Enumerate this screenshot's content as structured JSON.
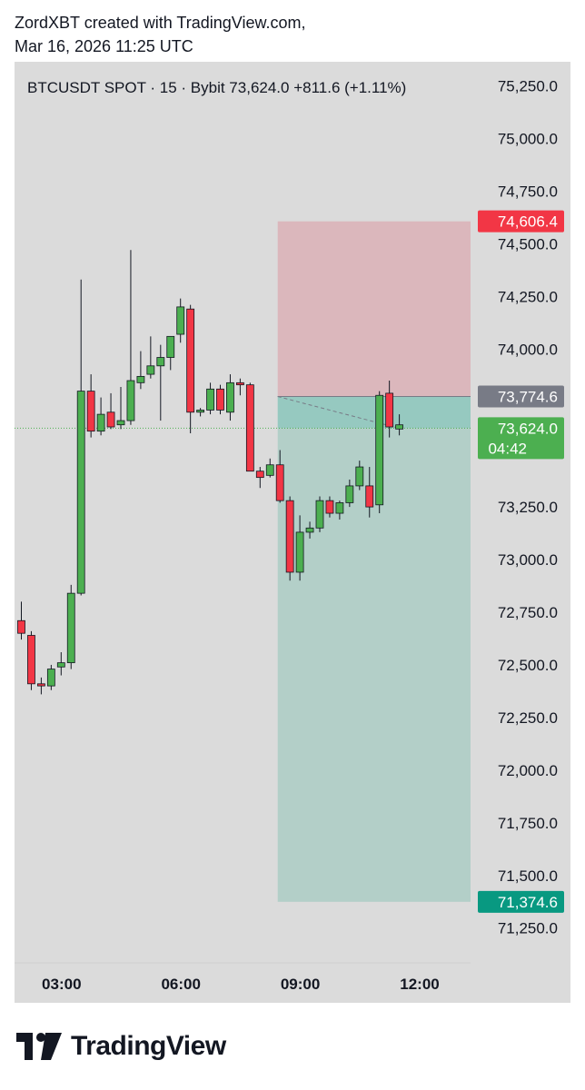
{
  "header": {
    "line1": "ZordXBT created with TradingView.com,",
    "line2": "Mar 16, 2026 11:25 UTC"
  },
  "footer": {
    "brand": "TradingView",
    "logo_icon": "tradingview-logo-icon"
  },
  "colors": {
    "background": "#dbdbdb",
    "up": "#4caf50",
    "down": "#f23645",
    "stop_zone": "#dbb7bc",
    "target_zone": "#b3cfc8",
    "entry_zone": "#96c9c0",
    "stop_label": "#f23645",
    "target_label": "#089981",
    "entry_label": "#787b86",
    "last_label": "#4caf50",
    "wick": "#131722"
  },
  "chart_data": {
    "type": "candlestick",
    "symbol_line": "BTCUSDT SPOT · 15 · Bybit  73,624.0  +811.6 (+1.11%)",
    "y_ticks": [
      75250,
      75000,
      74750,
      74500,
      74250,
      74000,
      73250,
      73000,
      72750,
      72500,
      72250,
      72000,
      71750,
      71500,
      71250
    ],
    "y_tick_labels": [
      "75,250.0",
      "75,000.0",
      "74,750.0",
      "74,500.0",
      "74,250.0",
      "74,000.0",
      "73,250.0",
      "73,000.0",
      "72,750.0",
      "72,500.0",
      "72,250.0",
      "72,000.0",
      "71,750.0",
      "71,500.0",
      "71,250.0"
    ],
    "ylim": [
      71000,
      75350
    ],
    "x_ticks": [
      {
        "index": 4,
        "label": "03:00"
      },
      {
        "index": 16,
        "label": "06:00"
      },
      {
        "index": 28,
        "label": "09:00"
      },
      {
        "index": 40,
        "label": "12:00"
      }
    ],
    "candles": [
      {
        "o": 72710,
        "h": 72800,
        "l": 72620,
        "c": 72650
      },
      {
        "o": 72640,
        "h": 72660,
        "l": 72380,
        "c": 72410
      },
      {
        "o": 72410,
        "h": 72440,
        "l": 72360,
        "c": 72400
      },
      {
        "o": 72400,
        "h": 72500,
        "l": 72380,
        "c": 72480
      },
      {
        "o": 72490,
        "h": 72560,
        "l": 72450,
        "c": 72510
      },
      {
        "o": 72510,
        "h": 72880,
        "l": 72480,
        "c": 72840
      },
      {
        "o": 72840,
        "h": 74330,
        "l": 72830,
        "c": 73800
      },
      {
        "o": 73800,
        "h": 73880,
        "l": 73580,
        "c": 73610
      },
      {
        "o": 73610,
        "h": 73770,
        "l": 73590,
        "c": 73690
      },
      {
        "o": 73700,
        "h": 73790,
        "l": 73620,
        "c": 73630
      },
      {
        "o": 73640,
        "h": 73820,
        "l": 73620,
        "c": 73660
      },
      {
        "o": 73660,
        "h": 74470,
        "l": 73640,
        "c": 73850
      },
      {
        "o": 73840,
        "h": 73990,
        "l": 73810,
        "c": 73870
      },
      {
        "o": 73880,
        "h": 74060,
        "l": 73860,
        "c": 73920
      },
      {
        "o": 73920,
        "h": 74020,
        "l": 73660,
        "c": 73960
      },
      {
        "o": 73960,
        "h": 74020,
        "l": 73900,
        "c": 74060
      },
      {
        "o": 74070,
        "h": 74240,
        "l": 74030,
        "c": 74200
      },
      {
        "o": 74190,
        "h": 74210,
        "l": 73600,
        "c": 73700
      },
      {
        "o": 73700,
        "h": 73720,
        "l": 73680,
        "c": 73710
      },
      {
        "o": 73710,
        "h": 73840,
        "l": 73690,
        "c": 73810
      },
      {
        "o": 73810,
        "h": 73830,
        "l": 73690,
        "c": 73710
      },
      {
        "o": 73700,
        "h": 73880,
        "l": 73660,
        "c": 73840
      },
      {
        "o": 73840,
        "h": 73860,
        "l": 73780,
        "c": 73830
      },
      {
        "o": 73830,
        "h": 73840,
        "l": 73420,
        "c": 73420
      },
      {
        "o": 73420,
        "h": 73440,
        "l": 73340,
        "c": 73390
      },
      {
        "o": 73400,
        "h": 73480,
        "l": 73390,
        "c": 73450
      },
      {
        "o": 73450,
        "h": 73520,
        "l": 73270,
        "c": 73280
      },
      {
        "o": 73280,
        "h": 73300,
        "l": 72900,
        "c": 72940
      },
      {
        "o": 72940,
        "h": 73210,
        "l": 72900,
        "c": 73130
      },
      {
        "o": 73130,
        "h": 73180,
        "l": 73100,
        "c": 73150
      },
      {
        "o": 73150,
        "h": 73300,
        "l": 73130,
        "c": 73280
      },
      {
        "o": 73280,
        "h": 73300,
        "l": 73200,
        "c": 73220
      },
      {
        "o": 73220,
        "h": 73280,
        "l": 73190,
        "c": 73270
      },
      {
        "o": 73270,
        "h": 73380,
        "l": 73250,
        "c": 73350
      },
      {
        "o": 73350,
        "h": 73470,
        "l": 73330,
        "c": 73440
      },
      {
        "o": 73350,
        "h": 73440,
        "l": 73200,
        "c": 73250
      },
      {
        "o": 73260,
        "h": 73800,
        "l": 73220,
        "c": 73780
      },
      {
        "o": 73790,
        "h": 73850,
        "l": 73580,
        "c": 73630
      },
      {
        "o": 73620,
        "h": 73690,
        "l": 73590,
        "c": 73640
      }
    ],
    "position": {
      "entry": 73774.6,
      "stop": 74606.4,
      "target": 71374.6,
      "start_index": 26
    },
    "labels": {
      "stop": "74,606.4",
      "entry": "73,774.6",
      "last_price": "73,624.0",
      "countdown": "04:42",
      "target": "71,374.6"
    },
    "last_price": 73624.0
  }
}
